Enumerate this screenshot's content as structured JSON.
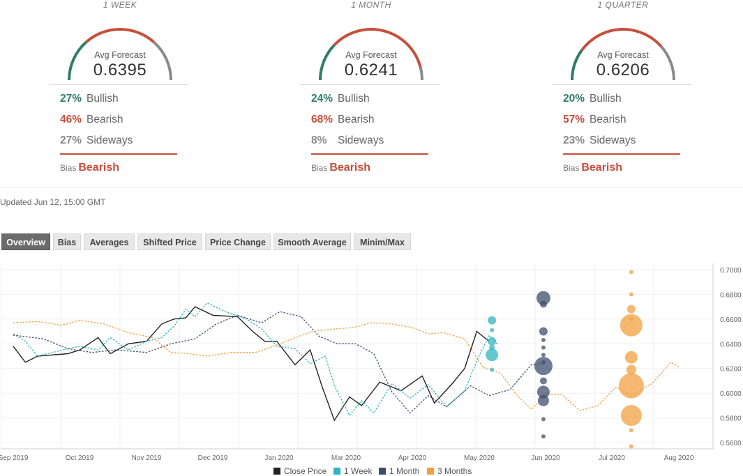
{
  "panels": [
    {
      "title": "1 WEEK",
      "avg_label": "Avg Forecast",
      "avg_value": "0.6395",
      "bullish_pct": "27%",
      "bearish_pct": "46%",
      "sideways_pct": "27%",
      "bullish": 0.27,
      "bearish": 0.46,
      "sideways": 0.27
    },
    {
      "title": "1 MONTH",
      "avg_label": "Avg Forecast",
      "avg_value": "0.6241",
      "bullish_pct": "24%",
      "bearish_pct": "68%",
      "sideways_pct": "8%",
      "bullish": 0.24,
      "bearish": 0.68,
      "sideways": 0.08
    },
    {
      "title": "1 QUARTER",
      "avg_label": "Avg Forecast",
      "avg_value": "0.6206",
      "bullish_pct": "20%",
      "bearish_pct": "57%",
      "sideways_pct": "23%",
      "bullish": 0.2,
      "bearish": 0.57,
      "sideways": 0.23
    }
  ],
  "labels": {
    "bullish": "Bullish",
    "bearish": "Bearish",
    "sideways": "Sideways",
    "bias": "Bias",
    "bias_value": "Bearish"
  },
  "colors": {
    "bullish": "#2e7d6a",
    "bearish": "#c74e3c",
    "sideways": "#8a8a8a",
    "close": "#222222",
    "week": "#2fb5bf",
    "month": "#3d4f6e",
    "quarter": "#f0a040"
  },
  "updated": "Updated Jun 12, 15:00 GMT",
  "tabs": [
    "Overview",
    "Bias",
    "Averages",
    "Shifted Price",
    "Price Change",
    "Smooth Average",
    "Minim/Max"
  ],
  "active_tab": "Overview",
  "chart_data": {
    "type": "line",
    "x_tick_labels": [
      "Sep 2019",
      "Oct 2019",
      "Nov 2019",
      "Dec 2019",
      "Jan 2020",
      "Mar 2020",
      "Apr 2020",
      "May 2020",
      "Jun 2020",
      "Jul 2020",
      "Aug 2020"
    ],
    "y_tick_labels": [
      "0.7000",
      "0.6800",
      "0.6600",
      "0.6400",
      "0.6200",
      "0.6000",
      "0.5800",
      "0.5600"
    ],
    "ylim": [
      0.555,
      0.705
    ],
    "grid": true,
    "legend_position": "bottom",
    "series": [
      {
        "name": "Close Price",
        "key": "close",
        "dashed": false,
        "points": [
          [
            0,
            0.638
          ],
          [
            0.2,
            0.625
          ],
          [
            0.4,
            0.63
          ],
          [
            0.9,
            0.632
          ],
          [
            1.1,
            0.635
          ],
          [
            1.4,
            0.645
          ],
          [
            1.6,
            0.632
          ],
          [
            1.9,
            0.64
          ],
          [
            2.2,
            0.642
          ],
          [
            2.45,
            0.656
          ],
          [
            2.65,
            0.66
          ],
          [
            2.85,
            0.661
          ],
          [
            3.0,
            0.67
          ],
          [
            3.3,
            0.663
          ],
          [
            3.7,
            0.662
          ],
          [
            3.95,
            0.65
          ],
          [
            4.15,
            0.642
          ],
          [
            4.35,
            0.642
          ],
          [
            4.65,
            0.623
          ],
          [
            4.9,
            0.635
          ],
          [
            5.1,
            0.605
          ],
          [
            5.3,
            0.578
          ],
          [
            5.55,
            0.597
          ],
          [
            5.75,
            0.59
          ],
          [
            6.05,
            0.609
          ],
          [
            6.4,
            0.602
          ],
          [
            6.75,
            0.614
          ],
          [
            6.95,
            0.592
          ],
          [
            7.25,
            0.608
          ],
          [
            7.45,
            0.62
          ],
          [
            7.65,
            0.65
          ],
          [
            7.85,
            0.642
          ]
        ]
      },
      {
        "name": "1 Week",
        "key": "week",
        "dashed": true,
        "points": [
          [
            0,
            0.648
          ],
          [
            0.2,
            0.642
          ],
          [
            0.4,
            0.63
          ],
          [
            0.9,
            0.636
          ],
          [
            1.1,
            0.638
          ],
          [
            1.4,
            0.635
          ],
          [
            1.6,
            0.645
          ],
          [
            1.9,
            0.635
          ],
          [
            2.2,
            0.642
          ],
          [
            2.45,
            0.645
          ],
          [
            2.65,
            0.654
          ],
          [
            2.85,
            0.668
          ],
          [
            3.0,
            0.662
          ],
          [
            3.2,
            0.673
          ],
          [
            3.5,
            0.666
          ],
          [
            3.85,
            0.66
          ],
          [
            4.1,
            0.652
          ],
          [
            4.35,
            0.638
          ],
          [
            4.65,
            0.636
          ],
          [
            4.9,
            0.624
          ],
          [
            5.15,
            0.63
          ],
          [
            5.3,
            0.606
          ],
          [
            5.55,
            0.582
          ],
          [
            5.75,
            0.594
          ],
          [
            5.95,
            0.584
          ],
          [
            6.25,
            0.608
          ],
          [
            6.55,
            0.596
          ],
          [
            6.85,
            0.607
          ],
          [
            7.15,
            0.589
          ],
          [
            7.45,
            0.602
          ],
          [
            7.65,
            0.626
          ],
          [
            7.85,
            0.647
          ],
          [
            8.0,
            0.639
          ]
        ]
      },
      {
        "name": "1 Month",
        "key": "month",
        "dashed": true,
        "points": [
          [
            0,
            0.647
          ],
          [
            0.5,
            0.644
          ],
          [
            0.9,
            0.636
          ],
          [
            1.3,
            0.633
          ],
          [
            1.7,
            0.635
          ],
          [
            2.2,
            0.633
          ],
          [
            2.6,
            0.64
          ],
          [
            3.0,
            0.644
          ],
          [
            3.35,
            0.656
          ],
          [
            3.7,
            0.663
          ],
          [
            4.1,
            0.657
          ],
          [
            4.4,
            0.666
          ],
          [
            4.75,
            0.662
          ],
          [
            5.05,
            0.646
          ],
          [
            5.35,
            0.64
          ],
          [
            5.65,
            0.64
          ],
          [
            5.95,
            0.632
          ],
          [
            6.25,
            0.601
          ],
          [
            6.55,
            0.584
          ],
          [
            6.85,
            0.598
          ],
          [
            7.15,
            0.589
          ],
          [
            7.55,
            0.606
          ],
          [
            7.85,
            0.598
          ],
          [
            8.2,
            0.603
          ],
          [
            8.55,
            0.623
          ],
          [
            8.75,
            0.624
          ]
        ]
      },
      {
        "name": "3 Months",
        "key": "quarter",
        "dashed": true,
        "points": [
          [
            0,
            0.657
          ],
          [
            0.4,
            0.658
          ],
          [
            0.8,
            0.655
          ],
          [
            1.1,
            0.659
          ],
          [
            1.5,
            0.656
          ],
          [
            1.9,
            0.649
          ],
          [
            2.3,
            0.645
          ],
          [
            2.6,
            0.633
          ],
          [
            2.9,
            0.632
          ],
          [
            3.2,
            0.63
          ],
          [
            3.6,
            0.633
          ],
          [
            4.0,
            0.633
          ],
          [
            4.3,
            0.638
          ],
          [
            4.6,
            0.644
          ],
          [
            4.95,
            0.65
          ],
          [
            5.3,
            0.652
          ],
          [
            5.6,
            0.653
          ],
          [
            5.9,
            0.657
          ],
          [
            6.25,
            0.656
          ],
          [
            6.6,
            0.653
          ],
          [
            6.85,
            0.648
          ],
          [
            7.1,
            0.649
          ],
          [
            7.45,
            0.644
          ],
          [
            7.75,
            0.621
          ],
          [
            8.05,
            0.616
          ],
          [
            8.3,
            0.599
          ],
          [
            8.55,
            0.587
          ],
          [
            8.8,
            0.599
          ],
          [
            9.05,
            0.599
          ],
          [
            9.35,
            0.586
          ],
          [
            9.65,
            0.59
          ],
          [
            9.95,
            0.605
          ],
          [
            10.2,
            0.598
          ],
          [
            10.55,
            0.608
          ],
          [
            10.85,
            0.625
          ],
          [
            11.0,
            0.621
          ]
        ]
      }
    ],
    "bubbles": [
      {
        "series": "week",
        "x": 7.9,
        "points": [
          [
            0.659,
            6
          ],
          [
            0.651,
            3
          ],
          [
            0.642,
            6
          ],
          [
            0.637,
            4
          ],
          [
            0.631,
            9
          ],
          [
            0.619,
            3
          ]
        ]
      },
      {
        "series": "month",
        "x": 8.75,
        "points": [
          [
            0.677,
            10
          ],
          [
            0.672,
            5
          ],
          [
            0.65,
            6
          ],
          [
            0.643,
            3
          ],
          [
            0.637,
            3
          ],
          [
            0.631,
            3
          ],
          [
            0.625,
            3
          ],
          [
            0.622,
            13
          ],
          [
            0.61,
            5
          ],
          [
            0.601,
            9
          ],
          [
            0.594,
            8
          ],
          [
            0.579,
            3
          ],
          [
            0.565,
            3
          ]
        ]
      },
      {
        "series": "quarter",
        "x": 10.2,
        "points": [
          [
            0.698,
            3
          ],
          [
            0.68,
            3
          ],
          [
            0.668,
            6
          ],
          [
            0.66,
            3
          ],
          [
            0.655,
            16
          ],
          [
            0.629,
            9
          ],
          [
            0.619,
            7
          ],
          [
            0.606,
            18
          ],
          [
            0.582,
            15
          ],
          [
            0.57,
            3
          ],
          [
            0.557,
            3
          ]
        ]
      }
    ]
  }
}
